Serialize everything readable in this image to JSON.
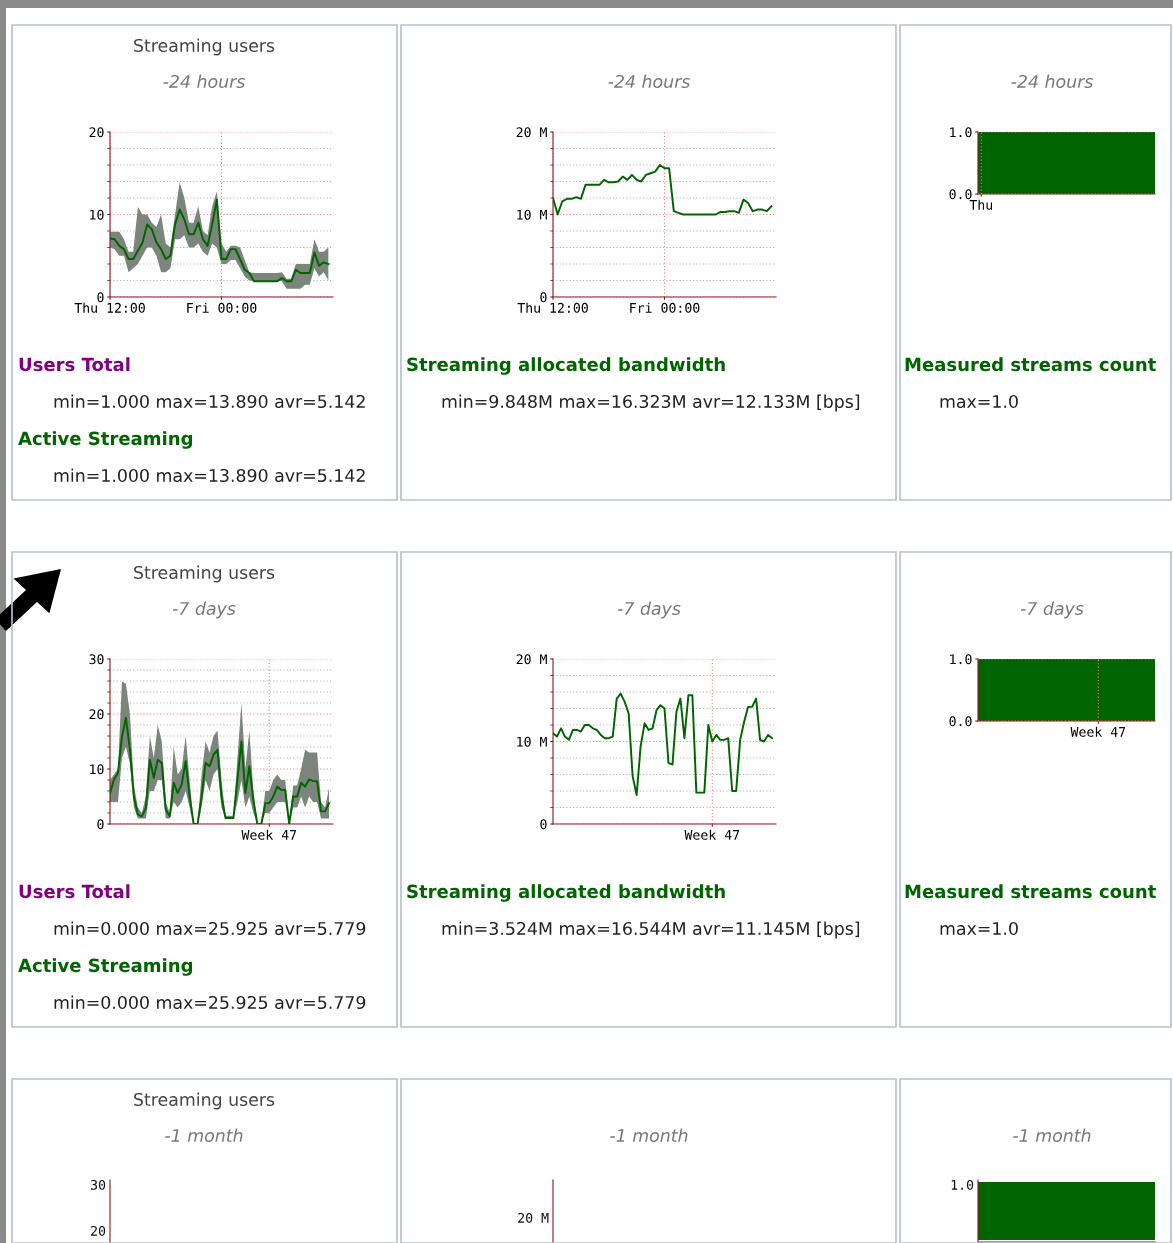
{
  "chart_data": [
    {
      "type": "line",
      "title": "Streaming users",
      "subtitle": "-24 hours",
      "categories": [
        "Thu 12:00",
        null,
        null,
        null,
        null,
        null,
        null,
        null,
        null,
        null,
        null,
        null,
        null,
        null,
        null,
        null,
        null,
        null,
        null,
        null,
        null,
        null,
        null,
        null,
        "Fri 00:00",
        null,
        null,
        null,
        null,
        null,
        null,
        null,
        null,
        null,
        null,
        null,
        null,
        null,
        null,
        null,
        null,
        null,
        null,
        null,
        null,
        null,
        null,
        null
      ],
      "ylim": [
        0,
        20
      ],
      "yticks": [
        0,
        {
          "value": 2,
          "label": null
        },
        {
          "value": 4,
          "label": null
        },
        {
          "value": 6,
          "label": null
        },
        {
          "value": 8,
          "label": null
        },
        10,
        {
          "value": 12,
          "label": null
        },
        {
          "value": 14,
          "label": null
        },
        {
          "value": 16,
          "label": null
        },
        {
          "value": 18,
          "label": null
        },
        20
      ],
      "grid": true,
      "legend": "bottom",
      "series": [
        {
          "name": "Users Total",
          "color": "#800080",
          "values": [
            null,
            null,
            null,
            null,
            null,
            null,
            null,
            null,
            null,
            null,
            null,
            null,
            null,
            null,
            null,
            null,
            null,
            null,
            null,
            null,
            null,
            null,
            null,
            null,
            null,
            null,
            null,
            null,
            null,
            null,
            null,
            null,
            null,
            null,
            null,
            null,
            null,
            null,
            null,
            null,
            null,
            null,
            null,
            null,
            null,
            null,
            null,
            null
          ]
        },
        {
          "name": "Active Streaming",
          "color": "#006400",
          "values": [
            7.1,
            7.0,
            6.2,
            5.8,
            4.6,
            4.6,
            5.6,
            6.6,
            8.8,
            8.2,
            6.6,
            5.8,
            4.6,
            5.0,
            8.8,
            10.6,
            9.4,
            7.6,
            7.6,
            9.0,
            7.0,
            6.2,
            8.8,
            11.8,
            4.6,
            4.6,
            5.8,
            5.8,
            4.6,
            3.3,
            2.9,
            1.9,
            1.9,
            1.9,
            1.9,
            1.9,
            1.9,
            2.3,
            1.9,
            1.9,
            3.3,
            2.9,
            2.9,
            2.9,
            5.4,
            3.8,
            4.2,
            4.0
          ],
          "lower": [
            6.0,
            5.8,
            5.0,
            5.0,
            3.0,
            3.5,
            4.0,
            5.0,
            6.0,
            6.0,
            5.0,
            3.0,
            3.0,
            3.5,
            7.0,
            7.0,
            7.5,
            6.0,
            6.0,
            6.5,
            5.5,
            5.0,
            6.5,
            6.0,
            4.0,
            4.0,
            4.5,
            4.5,
            3.5,
            2.5,
            2.0,
            1.9,
            1.9,
            1.9,
            1.9,
            1.9,
            1.9,
            1.9,
            1.0,
            1.0,
            1.0,
            1.0,
            1.5,
            1.5,
            3.5,
            2.5,
            3.0,
            2.0
          ],
          "upper": [
            7.9,
            7.9,
            7.9,
            7.0,
            5.5,
            5.5,
            10.9,
            10.0,
            10.0,
            9.0,
            8.5,
            10.0,
            6.5,
            6.0,
            10.0,
            13.9,
            12.0,
            9.0,
            9.0,
            11.0,
            8.0,
            7.5,
            11.0,
            12.8,
            6.5,
            5.5,
            6.2,
            6.2,
            6.0,
            4.5,
            3.0,
            2.9,
            2.9,
            2.9,
            2.9,
            2.9,
            2.9,
            3.0,
            2.2,
            2.2,
            4.0,
            4.0,
            4.0,
            4.0,
            7.0,
            5.5,
            5.5,
            6.0
          ]
        }
      ],
      "annotations": [
        "min=1.000 max=13.890 avr=5.142",
        "min=1.000 max=13.890 avr=5.142"
      ]
    },
    {
      "type": "line",
      "subtitle": "-24 hours",
      "categories": [
        "Thu 12:00",
        null,
        null,
        null,
        null,
        null,
        null,
        null,
        null,
        null,
        null,
        null,
        null,
        null,
        null,
        null,
        null,
        null,
        null,
        null,
        null,
        null,
        null,
        null,
        "Fri 00:00",
        null,
        null,
        null,
        null,
        null,
        null,
        null,
        null,
        null,
        null,
        null,
        null,
        null,
        null,
        null,
        null,
        null,
        null,
        null,
        null,
        null,
        null,
        null
      ],
      "ylim": [
        0,
        20
      ],
      "yticks": [
        0,
        {
          "value": 2,
          "label": null
        },
        {
          "value": 4,
          "label": null
        },
        {
          "value": 6,
          "label": null
        },
        {
          "value": 8,
          "label": null
        },
        {
          "value": 10,
          "label": "10 M"
        },
        {
          "value": 12,
          "label": null
        },
        {
          "value": 14,
          "label": null
        },
        {
          "value": 16,
          "label": null
        },
        {
          "value": 18,
          "label": null
        },
        {
          "value": 20,
          "label": "20 M"
        }
      ],
      "grid": true,
      "legend": "bottom",
      "series": [
        {
          "name": "Streaming allocated bandwidth",
          "color": "#006400",
          "values": [
            12.0,
            10.0,
            11.6,
            11.9,
            11.9,
            12.1,
            11.9,
            13.6,
            13.6,
            13.6,
            13.6,
            14.2,
            13.9,
            13.9,
            14.0,
            14.6,
            14.2,
            14.8,
            14.2,
            14.0,
            14.8,
            15.0,
            15.2,
            16.0,
            15.6,
            15.6,
            10.4,
            10.2,
            10.0,
            10.0,
            10.0,
            10.0,
            10.0,
            10.0,
            10.0,
            10.0,
            10.3,
            10.3,
            10.4,
            10.4,
            10.2,
            11.8,
            11.4,
            10.4,
            10.6,
            10.6,
            10.4,
            11.0
          ]
        }
      ],
      "annotations": [
        "min=9.848M max=16.323M avr=12.133M [bps]"
      ]
    },
    {
      "type": "area",
      "subtitle": "-24 hours",
      "categories": [
        "Thu",
        null,
        null,
        null,
        null,
        null,
        null,
        null,
        null,
        null,
        null,
        null,
        null,
        null,
        null,
        null,
        null,
        null,
        null,
        null,
        null,
        null,
        null,
        null
      ],
      "ylim": [
        0,
        1
      ],
      "yticks": [
        {
          "value": 0,
          "label": "0.0"
        },
        {
          "value": 1,
          "label": "1.0"
        }
      ],
      "grid": true,
      "bands": [
        {
          "axis": "y",
          "from": 0,
          "to": 1,
          "label": "Measured streams count",
          "color": "#006400"
        }
      ],
      "annotations": [
        "max=1.0"
      ]
    },
    {
      "type": "line",
      "title": "Streaming users",
      "subtitle": "-7 days",
      "categories": [
        null,
        null,
        null,
        null,
        null,
        null,
        null,
        null,
        null,
        null,
        null,
        null,
        null,
        null,
        null,
        null,
        null,
        null,
        null,
        null,
        null,
        null,
        null,
        null,
        null,
        null,
        null,
        null,
        null,
        null,
        null,
        null,
        null,
        null,
        null,
        null,
        null,
        null,
        null,
        null,
        "Week 47",
        null,
        null,
        null,
        null,
        null,
        null,
        null,
        null,
        null,
        null,
        null,
        null,
        null,
        null,
        null
      ],
      "ylim": [
        0,
        30
      ],
      "yticks": [
        0,
        {
          "value": 2,
          "label": null
        },
        {
          "value": 4,
          "label": null
        },
        {
          "value": 6,
          "label": null
        },
        {
          "value": 8,
          "label": null
        },
        10,
        {
          "value": 12,
          "label": null
        },
        {
          "value": 14,
          "label": null
        },
        {
          "value": 16,
          "label": null
        },
        {
          "value": 18,
          "label": null
        },
        20,
        {
          "value": 22,
          "label": null
        },
        {
          "value": 24,
          "label": null
        },
        {
          "value": 26,
          "label": null
        },
        {
          "value": 28,
          "label": null
        },
        30
      ],
      "grid": true,
      "legend": "bottom",
      "series": [
        {
          "name": "Users Total",
          "color": "#800080",
          "values": [
            null,
            null,
            null,
            null,
            null,
            null,
            null,
            null,
            null,
            null,
            null,
            null,
            null,
            null,
            null,
            null,
            null,
            null,
            null,
            null,
            null,
            null,
            null,
            null,
            null,
            null,
            null,
            null,
            null,
            null,
            null,
            null,
            null,
            null,
            null,
            null,
            null,
            null,
            null,
            null,
            null,
            null,
            null,
            null,
            null,
            null,
            null,
            null,
            null,
            null,
            null,
            null,
            null,
            null,
            null,
            null
          ]
        },
        {
          "name": "Active Streaming",
          "color": "#006400",
          "values": [
            5.6,
            8.1,
            9.3,
            15.9,
            19.3,
            13.5,
            5.0,
            1.7,
            1.4,
            2.9,
            11.7,
            8.4,
            11.7,
            11.1,
            2.6,
            1.4,
            7.5,
            5.6,
            7.2,
            11.4,
            5.0,
            0,
            0,
            5.0,
            11.1,
            10.5,
            12.6,
            13.5,
            5.0,
            1.1,
            1.1,
            1.1,
            8.1,
            15.0,
            5.6,
            10.5,
            4.4,
            0,
            0,
            3.8,
            3.8,
            5.0,
            6.8,
            6.2,
            6.2,
            0,
            5.0,
            5.0,
            7.5,
            6.8,
            8.1,
            7.8,
            7.8,
            2.3,
            2.3,
            3.8
          ],
          "lower": [
            4,
            4,
            4,
            12,
            14,
            11,
            3,
            1,
            1,
            1,
            6,
            6,
            8,
            8,
            1,
            1,
            4,
            3,
            4,
            6,
            3,
            0,
            0,
            3,
            8,
            6,
            9,
            10,
            3,
            1,
            1,
            1,
            4,
            8,
            3,
            5,
            2,
            0,
            0,
            2,
            2,
            3,
            4,
            4,
            4,
            0,
            3,
            3,
            5,
            3,
            5,
            4,
            4,
            1,
            1,
            1
          ],
          "upper": [
            8,
            9,
            10,
            25.9,
            25.5,
            20,
            7,
            3,
            2,
            5,
            16,
            12,
            18,
            15,
            4,
            2,
            14,
            9,
            10,
            16,
            8,
            0,
            0,
            9,
            15,
            13,
            16,
            17,
            8,
            1.5,
            1.5,
            1.5,
            12,
            22,
            10,
            17,
            6,
            0,
            0,
            6,
            6,
            8,
            9,
            8,
            8,
            0,
            7,
            7,
            10,
            13.5,
            13,
            13,
            13,
            4,
            3,
            6.5
          ]
        }
      ],
      "annotations": [
        "min=0.000 max=25.925 avr=5.779",
        "min=0.000 max=25.925 avr=5.779"
      ]
    },
    {
      "type": "line",
      "subtitle": "-7 days",
      "categories": [
        null,
        null,
        null,
        null,
        null,
        null,
        null,
        null,
        null,
        null,
        null,
        null,
        null,
        null,
        null,
        null,
        null,
        null,
        null,
        null,
        null,
        null,
        null,
        null,
        null,
        null,
        null,
        null,
        null,
        null,
        null,
        null,
        null,
        null,
        null,
        null,
        null,
        null,
        null,
        null,
        "Week 47",
        null,
        null,
        null,
        null,
        null,
        null,
        null,
        null,
        null,
        null,
        null,
        null,
        null,
        null,
        null
      ],
      "ylim": [
        0,
        20
      ],
      "yticks": [
        0,
        {
          "value": 2,
          "label": null
        },
        {
          "value": 4,
          "label": null
        },
        {
          "value": 6,
          "label": null
        },
        {
          "value": 8,
          "label": null
        },
        {
          "value": 10,
          "label": "10 M"
        },
        {
          "value": 12,
          "label": null
        },
        {
          "value": 14,
          "label": null
        },
        {
          "value": 16,
          "label": null
        },
        {
          "value": 18,
          "label": null
        },
        {
          "value": 20,
          "label": "20 M"
        }
      ],
      "grid": true,
      "legend": "bottom",
      "series": [
        {
          "name": "Streaming allocated bandwidth",
          "color": "#006400",
          "values": [
            11.0,
            10.6,
            11.6,
            10.6,
            10.2,
            11.4,
            11.4,
            11.2,
            12.0,
            12.0,
            11.6,
            11.4,
            10.8,
            10.4,
            10.4,
            10.6,
            15.2,
            15.8,
            14.8,
            13.4,
            5.8,
            3.5,
            9.4,
            12.2,
            11.4,
            11.6,
            13.8,
            14.4,
            14.0,
            7.4,
            7.2,
            13.6,
            15.2,
            10.4,
            15.6,
            15.6,
            3.8,
            3.8,
            3.8,
            12.0,
            10.0,
            10.8,
            10.2,
            10.2,
            10.4,
            4.0,
            4.0,
            10.2,
            12.4,
            14.2,
            14.2,
            15.2,
            10.2,
            10.0,
            10.8,
            10.4
          ]
        }
      ],
      "annotations": [
        "min=3.524M max=16.544M avr=11.145M [bps]"
      ]
    },
    {
      "type": "area",
      "subtitle": "-7 days",
      "categories": [
        null,
        null,
        null,
        null,
        null,
        "Week 47",
        null,
        null
      ],
      "ylim": [
        0,
        1
      ],
      "yticks": [
        {
          "value": 0,
          "label": "0.0"
        },
        {
          "value": 1,
          "label": "1.0"
        }
      ],
      "grid": true,
      "bands": [
        {
          "axis": "y",
          "from": 0,
          "to": 1,
          "label": "Measured streams count",
          "color": "#006400"
        }
      ],
      "annotations": [
        "max=1.0"
      ]
    },
    {
      "type": "other",
      "title": "Streaming users",
      "subtitle": "-1 month",
      "annotations": [
        "30",
        "20"
      ]
    },
    {
      "type": "other",
      "subtitle": "-1 month",
      "annotations": [
        "20 M"
      ]
    },
    {
      "type": "other",
      "subtitle": "-1 month",
      "annotations": [
        "1.0"
      ]
    }
  ]
}
